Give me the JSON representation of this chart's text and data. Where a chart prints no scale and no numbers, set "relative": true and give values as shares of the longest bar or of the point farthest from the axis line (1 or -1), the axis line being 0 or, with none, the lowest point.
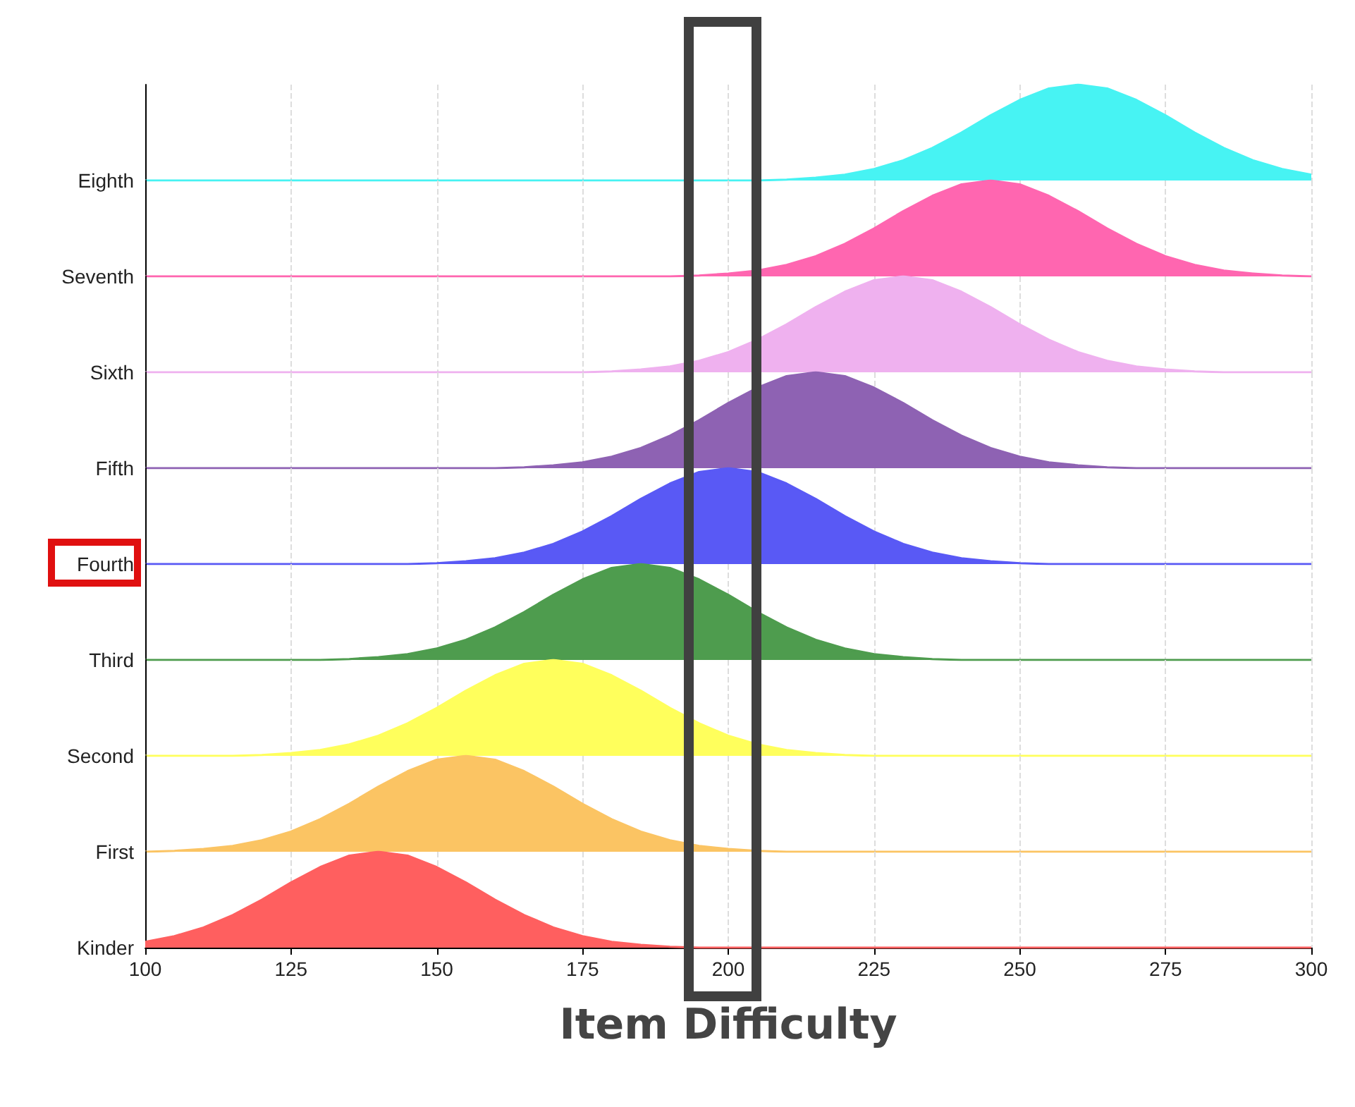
{
  "chart_data": [
    {
      "type": "area",
      "relative": true,
      "ylabel": "Eighth",
      "tick_labels": false,
      "grid": "x",
      "xlim": [
        100,
        300
      ],
      "xticks": [
        100,
        125,
        150,
        175,
        200,
        225,
        250,
        275,
        300
      ],
      "x": [
        100,
        105,
        110,
        115,
        120,
        125,
        130,
        135,
        140,
        145,
        150,
        155,
        160,
        165,
        170,
        175,
        180,
        185,
        190,
        195,
        200,
        205,
        210,
        215,
        220,
        225,
        230,
        235,
        240,
        245,
        250,
        255,
        260,
        265,
        270,
        275,
        280,
        285,
        290,
        295,
        300
      ],
      "series": [
        {
          "color": "#47f3f3",
          "values": [
            0,
            0,
            0,
            0,
            0,
            0,
            0,
            0,
            0,
            0,
            0,
            0,
            0,
            0,
            0,
            0,
            0,
            0,
            0,
            0,
            0,
            0,
            0.01,
            0.03,
            0.06,
            0.12,
            0.21,
            0.34,
            0.5,
            0.68,
            0.84,
            0.96,
            1,
            0.96,
            0.84,
            0.68,
            0.5,
            0.34,
            0.21,
            0.12,
            0.06
          ]
        }
      ]
    },
    {
      "type": "area",
      "relative": true,
      "ylabel": "Seventh",
      "tick_labels": false,
      "grid": "x",
      "xlim": [
        100,
        300
      ],
      "xticks": [
        100,
        125,
        150,
        175,
        200,
        225,
        250,
        275,
        300
      ],
      "x": [
        100,
        105,
        110,
        115,
        120,
        125,
        130,
        135,
        140,
        145,
        150,
        155,
        160,
        165,
        170,
        175,
        180,
        185,
        190,
        195,
        200,
        205,
        210,
        215,
        220,
        225,
        230,
        235,
        240,
        245,
        250,
        255,
        260,
        265,
        270,
        275,
        280,
        285,
        290,
        295,
        300
      ],
      "series": [
        {
          "color": "#ff66b0",
          "values": [
            0,
            0,
            0,
            0,
            0,
            0,
            0,
            0,
            0,
            0,
            0,
            0,
            0,
            0,
            0,
            0,
            0,
            0,
            0,
            0.01,
            0.03,
            0.06,
            0.12,
            0.21,
            0.34,
            0.5,
            0.68,
            0.84,
            0.96,
            1,
            0.96,
            0.84,
            0.68,
            0.5,
            0.34,
            0.21,
            0.12,
            0.06,
            0.03,
            0.01,
            0
          ]
        }
      ]
    },
    {
      "type": "area",
      "relative": true,
      "ylabel": "Sixth",
      "tick_labels": false,
      "grid": "x",
      "xlim": [
        100,
        300
      ],
      "xticks": [
        100,
        125,
        150,
        175,
        200,
        225,
        250,
        275,
        300
      ],
      "x": [
        100,
        105,
        110,
        115,
        120,
        125,
        130,
        135,
        140,
        145,
        150,
        155,
        160,
        165,
        170,
        175,
        180,
        185,
        190,
        195,
        200,
        205,
        210,
        215,
        220,
        225,
        230,
        235,
        240,
        245,
        250,
        255,
        260,
        265,
        270,
        275,
        280,
        285,
        290,
        295,
        300
      ],
      "series": [
        {
          "color": "#efb1ef",
          "values": [
            0,
            0,
            0,
            0,
            0,
            0,
            0,
            0,
            0,
            0,
            0,
            0,
            0,
            0,
            0,
            0,
            0.01,
            0.03,
            0.06,
            0.12,
            0.21,
            0.34,
            0.5,
            0.68,
            0.84,
            0.96,
            1,
            0.96,
            0.84,
            0.68,
            0.5,
            0.34,
            0.21,
            0.12,
            0.06,
            0.03,
            0.01,
            0,
            0,
            0,
            0
          ]
        }
      ]
    },
    {
      "type": "area",
      "relative": true,
      "ylabel": "Fifth",
      "tick_labels": false,
      "grid": "x",
      "xlim": [
        100,
        300
      ],
      "xticks": [
        100,
        125,
        150,
        175,
        200,
        225,
        250,
        275,
        300
      ],
      "x": [
        100,
        105,
        110,
        115,
        120,
        125,
        130,
        135,
        140,
        145,
        150,
        155,
        160,
        165,
        170,
        175,
        180,
        185,
        190,
        195,
        200,
        205,
        210,
        215,
        220,
        225,
        230,
        235,
        240,
        245,
        250,
        255,
        260,
        265,
        270,
        275,
        280,
        285,
        290,
        295,
        300
      ],
      "series": [
        {
          "color": "#8e62b3",
          "values": [
            0,
            0,
            0,
            0,
            0,
            0,
            0,
            0,
            0,
            0,
            0,
            0,
            0,
            0.01,
            0.03,
            0.06,
            0.12,
            0.21,
            0.34,
            0.5,
            0.68,
            0.84,
            0.96,
            1,
            0.96,
            0.84,
            0.68,
            0.5,
            0.34,
            0.21,
            0.12,
            0.06,
            0.03,
            0.01,
            0,
            0,
            0,
            0,
            0,
            0,
            0
          ]
        }
      ]
    },
    {
      "type": "area",
      "relative": true,
      "ylabel": "Fourth",
      "tick_labels": false,
      "grid": "x",
      "xlim": [
        100,
        300
      ],
      "xticks": [
        100,
        125,
        150,
        175,
        200,
        225,
        250,
        275,
        300
      ],
      "x": [
        100,
        105,
        110,
        115,
        120,
        125,
        130,
        135,
        140,
        145,
        150,
        155,
        160,
        165,
        170,
        175,
        180,
        185,
        190,
        195,
        200,
        205,
        210,
        215,
        220,
        225,
        230,
        235,
        240,
        245,
        250,
        255,
        260,
        265,
        270,
        275,
        280,
        285,
        290,
        295,
        300
      ],
      "series": [
        {
          "color": "#5959f5",
          "values": [
            0,
            0,
            0,
            0,
            0,
            0,
            0,
            0,
            0,
            0,
            0.01,
            0.03,
            0.06,
            0.12,
            0.21,
            0.34,
            0.5,
            0.68,
            0.84,
            0.96,
            1,
            0.96,
            0.84,
            0.68,
            0.5,
            0.34,
            0.21,
            0.12,
            0.06,
            0.03,
            0.01,
            0,
            0,
            0,
            0,
            0,
            0,
            0,
            0,
            0,
            0
          ]
        }
      ]
    },
    {
      "type": "area",
      "relative": true,
      "ylabel": "Third",
      "tick_labels": false,
      "grid": "x",
      "xlim": [
        100,
        300
      ],
      "xticks": [
        100,
        125,
        150,
        175,
        200,
        225,
        250,
        275,
        300
      ],
      "x": [
        100,
        105,
        110,
        115,
        120,
        125,
        130,
        135,
        140,
        145,
        150,
        155,
        160,
        165,
        170,
        175,
        180,
        185,
        190,
        195,
        200,
        205,
        210,
        215,
        220,
        225,
        230,
        235,
        240,
        245,
        250,
        255,
        260,
        265,
        270,
        275,
        280,
        285,
        290,
        295,
        300
      ],
      "series": [
        {
          "color": "#4e9c4e",
          "values": [
            0,
            0,
            0,
            0,
            0,
            0,
            0,
            0.01,
            0.03,
            0.06,
            0.12,
            0.21,
            0.34,
            0.5,
            0.68,
            0.84,
            0.96,
            1,
            0.96,
            0.84,
            0.68,
            0.5,
            0.34,
            0.21,
            0.12,
            0.06,
            0.03,
            0.01,
            0,
            0,
            0,
            0,
            0,
            0,
            0,
            0,
            0,
            0,
            0,
            0,
            0
          ]
        }
      ]
    },
    {
      "type": "area",
      "relative": true,
      "ylabel": "Second",
      "tick_labels": false,
      "grid": "x",
      "xlim": [
        100,
        300
      ],
      "xticks": [
        100,
        125,
        150,
        175,
        200,
        225,
        250,
        275,
        300
      ],
      "x": [
        100,
        105,
        110,
        115,
        120,
        125,
        130,
        135,
        140,
        145,
        150,
        155,
        160,
        165,
        170,
        175,
        180,
        185,
        190,
        195,
        200,
        205,
        210,
        215,
        220,
        225,
        230,
        235,
        240,
        245,
        250,
        255,
        260,
        265,
        270,
        275,
        280,
        285,
        290,
        295,
        300
      ],
      "series": [
        {
          "color": "#ffff5c",
          "values": [
            0,
            0,
            0,
            0,
            0.01,
            0.03,
            0.06,
            0.12,
            0.21,
            0.34,
            0.5,
            0.68,
            0.84,
            0.96,
            1,
            0.96,
            0.84,
            0.68,
            0.5,
            0.34,
            0.21,
            0.12,
            0.06,
            0.03,
            0.01,
            0,
            0,
            0,
            0,
            0,
            0,
            0,
            0,
            0,
            0,
            0,
            0,
            0,
            0,
            0,
            0
          ]
        }
      ]
    },
    {
      "type": "area",
      "relative": true,
      "ylabel": "First",
      "tick_labels": false,
      "grid": "x",
      "xlim": [
        100,
        300
      ],
      "xticks": [
        100,
        125,
        150,
        175,
        200,
        225,
        250,
        275,
        300
      ],
      "x": [
        100,
        105,
        110,
        115,
        120,
        125,
        130,
        135,
        140,
        145,
        150,
        155,
        160,
        165,
        170,
        175,
        180,
        185,
        190,
        195,
        200,
        205,
        210,
        215,
        220,
        225,
        230,
        235,
        240,
        245,
        250,
        255,
        260,
        265,
        270,
        275,
        280,
        285,
        290,
        295,
        300
      ],
      "series": [
        {
          "color": "#fbc463",
          "values": [
            0,
            0.01,
            0.03,
            0.06,
            0.12,
            0.21,
            0.34,
            0.5,
            0.68,
            0.84,
            0.96,
            1,
            0.96,
            0.84,
            0.68,
            0.5,
            0.34,
            0.21,
            0.12,
            0.06,
            0.03,
            0.01,
            0,
            0,
            0,
            0,
            0,
            0,
            0,
            0,
            0,
            0,
            0,
            0,
            0,
            0,
            0,
            0,
            0,
            0,
            0
          ]
        }
      ]
    },
    {
      "type": "area",
      "relative": true,
      "ylabel": "Kinder",
      "xlabel": "Item Difficulty",
      "tick_labels": "x",
      "grid": "x",
      "xlim": [
        100,
        300
      ],
      "xticks": [
        100,
        125,
        150,
        175,
        200,
        225,
        250,
        275,
        300
      ],
      "x": [
        100,
        105,
        110,
        115,
        120,
        125,
        130,
        135,
        140,
        145,
        150,
        155,
        160,
        165,
        170,
        175,
        180,
        185,
        190,
        195,
        200,
        205,
        210,
        215,
        220,
        225,
        230,
        235,
        240,
        245,
        250,
        255,
        260,
        265,
        270,
        275,
        280,
        285,
        290,
        295,
        300
      ],
      "series": [
        {
          "color": "#ff5f5f",
          "values": [
            0.06,
            0.12,
            0.21,
            0.34,
            0.5,
            0.68,
            0.84,
            0.96,
            1,
            0.96,
            0.84,
            0.68,
            0.5,
            0.34,
            0.21,
            0.12,
            0.06,
            0.03,
            0.01,
            0,
            0,
            0,
            0,
            0,
            0,
            0,
            0,
            0,
            0,
            0,
            0,
            0,
            0,
            0,
            0,
            0,
            0,
            0,
            0,
            0,
            0
          ]
        }
      ]
    }
  ]
}
